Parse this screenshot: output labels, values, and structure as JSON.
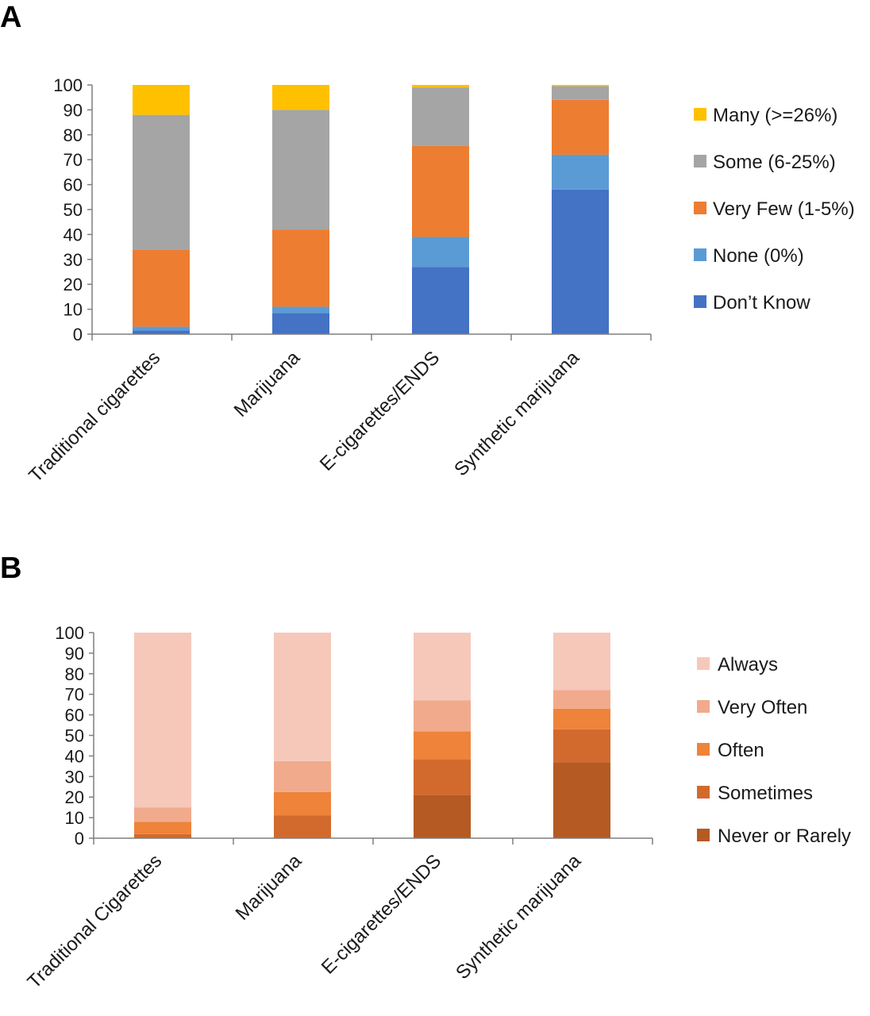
{
  "chart_data": [
    {
      "panel_label": "A",
      "type": "bar",
      "stacked": true,
      "title": "",
      "xlabel": "",
      "ylabel": "",
      "ylim": [
        0,
        100
      ],
      "yticks": [
        "0",
        "10",
        "20",
        "30",
        "40",
        "50",
        "60",
        "70",
        "80",
        "90",
        "100"
      ],
      "categories": [
        "Traditional cigarettes",
        "Marijuana",
        "E-cigarettes/ENDS",
        "Synthetic marijuana"
      ],
      "legend_position": "right",
      "grid": false,
      "series": [
        {
          "name": "Don’t Know",
          "color": "#4472C4",
          "values": [
            1.5,
            8.5,
            27,
            58
          ]
        },
        {
          "name": "None (0%)",
          "color": "#5B9BD5",
          "values": [
            1.5,
            2.5,
            12,
            14
          ]
        },
        {
          "name": "Very Few (1-5%)",
          "color": "#ED7D31",
          "values": [
            31,
            31,
            36.5,
            22
          ]
        },
        {
          "name": "Some (6-25%)",
          "color": "#A5A5A5",
          "values": [
            54,
            48,
            23.5,
            5.5
          ]
        },
        {
          "name": "Many (>=26%)",
          "color": "#FFC000",
          "values": [
            12,
            10,
            1,
            0.5
          ]
        }
      ]
    },
    {
      "panel_label": "B",
      "type": "bar",
      "stacked": true,
      "title": "",
      "xlabel": "",
      "ylabel": "",
      "ylim": [
        0,
        100
      ],
      "yticks": [
        "0",
        "10",
        "20",
        "30",
        "40",
        "50",
        "60",
        "70",
        "80",
        "90",
        "100"
      ],
      "categories": [
        "Traditional Cigarettes",
        "Marijuana",
        "E-cigarettes/ENDS",
        "Synthetic marijuana"
      ],
      "legend_position": "right",
      "grid": false,
      "series": [
        {
          "name": "Never or Rarely",
          "color": "#B45A22",
          "values": [
            0,
            0,
            21,
            37
          ]
        },
        {
          "name": "Sometimes",
          "color": "#D26A2D",
          "values": [
            2,
            11,
            17.5,
            16
          ]
        },
        {
          "name": "Often",
          "color": "#EE8339",
          "values": [
            6,
            11.5,
            13.5,
            10
          ]
        },
        {
          "name": "Very Often",
          "color": "#F1AA8C",
          "values": [
            7,
            15,
            15,
            9
          ]
        },
        {
          "name": "Always",
          "color": "#F6C8BA",
          "values": [
            85,
            62.5,
            33,
            28
          ]
        }
      ]
    }
  ]
}
